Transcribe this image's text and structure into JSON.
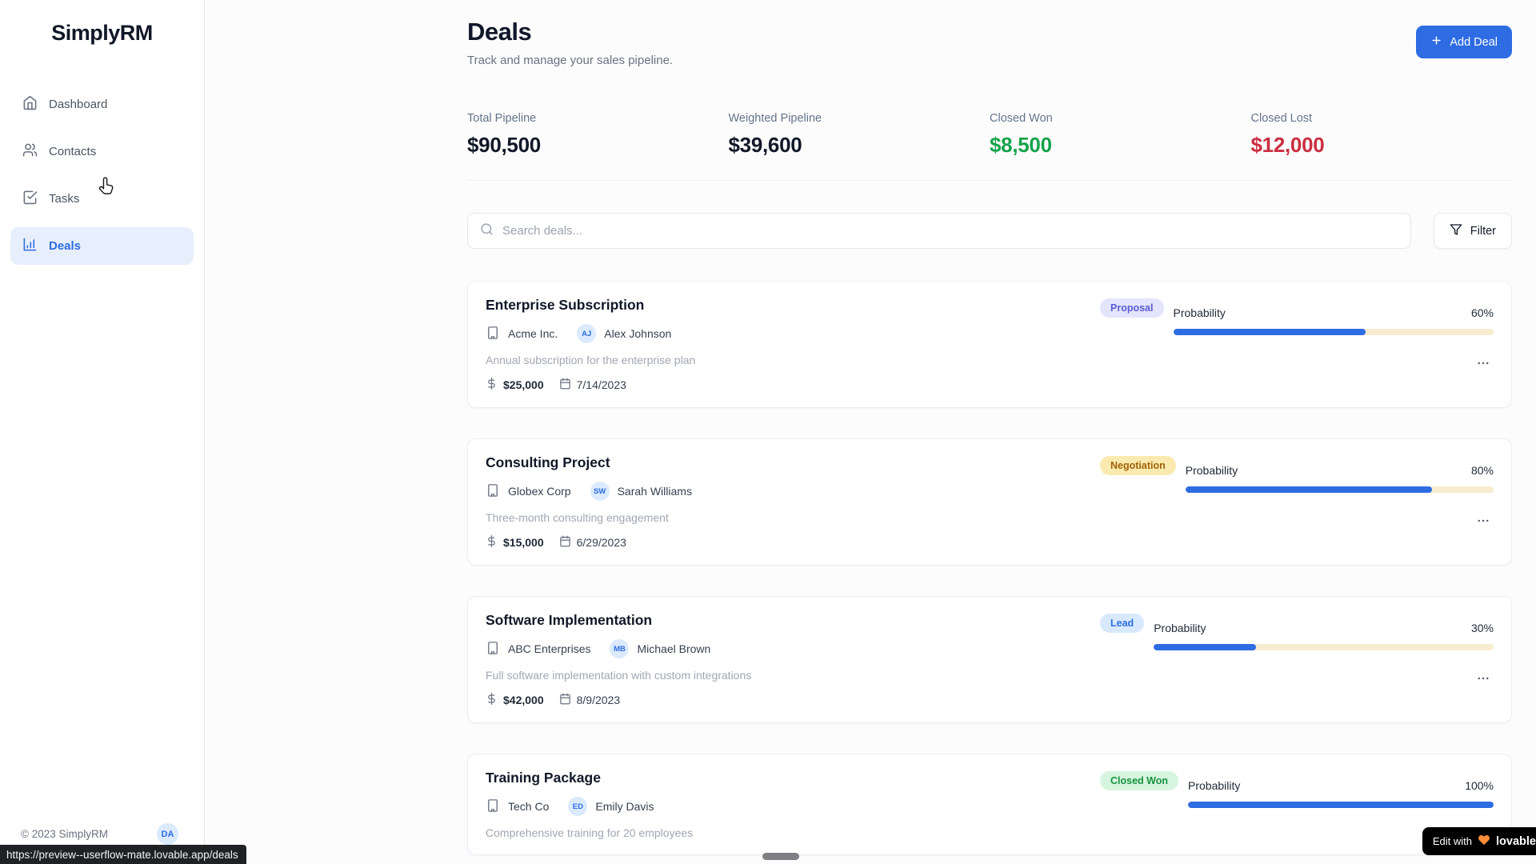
{
  "app": {
    "name": "SimplyRM"
  },
  "sidebar": {
    "items": [
      {
        "label": "Dashboard",
        "icon": "home-icon",
        "active": false
      },
      {
        "label": "Contacts",
        "icon": "users-icon",
        "active": false
      },
      {
        "label": "Tasks",
        "icon": "check-square-icon",
        "active": false
      },
      {
        "label": "Deals",
        "icon": "bar-chart-icon",
        "active": true
      }
    ],
    "footer": {
      "copyright": "© 2023 SimplyRM",
      "avatar_initials": "DA"
    }
  },
  "header": {
    "title": "Deals",
    "subtitle": "Track and manage your sales pipeline.",
    "add_deal_label": "Add Deal"
  },
  "stats": [
    {
      "label": "Total Pipeline",
      "value": "$90,500",
      "color": "#111827"
    },
    {
      "label": "Weighted Pipeline",
      "value": "$39,600",
      "color": "#111827"
    },
    {
      "label": "Closed Won",
      "value": "$8,500",
      "color": "#16a34a"
    },
    {
      "label": "Closed Lost",
      "value": "$12,000",
      "color": "#cb2d3f"
    }
  ],
  "toolbar": {
    "search_placeholder": "Search deals...",
    "filter_label": "Filter"
  },
  "labels": {
    "probability": "Probability"
  },
  "deals": [
    {
      "title": "Enterprise Subscription",
      "stage": "Proposal",
      "stage_bg": "#e4e4fc",
      "stage_fg": "#5b5bd6",
      "company": "Acme Inc.",
      "contact_initials": "AJ",
      "contact": "Alex Johnson",
      "description": "Annual subscription for the enterprise plan",
      "value": "$25,000",
      "date": "7/14/2023",
      "probability_text": "60%",
      "probability_pct": 60
    },
    {
      "title": "Consulting Project",
      "stage": "Negotiation",
      "stage_bg": "#fbeab0",
      "stage_fg": "#a16207",
      "company": "Globex Corp",
      "contact_initials": "SW",
      "contact": "Sarah Williams",
      "description": "Three-month consulting engagement",
      "value": "$15,000",
      "date": "6/29/2023",
      "probability_text": "80%",
      "probability_pct": 80
    },
    {
      "title": "Software Implementation",
      "stage": "Lead",
      "stage_bg": "#d9e9fd",
      "stage_fg": "#2b6fe4",
      "company": "ABC Enterprises",
      "contact_initials": "MB",
      "contact": "Michael Brown",
      "description": "Full software implementation with custom integrations",
      "value": "$42,000",
      "date": "8/9/2023",
      "probability_text": "30%",
      "probability_pct": 30
    },
    {
      "title": "Training Package",
      "stage": "Closed Won",
      "stage_bg": "#d6f5df",
      "stage_fg": "#15923f",
      "company": "Tech Co",
      "contact_initials": "ED",
      "contact": "Emily Davis",
      "description": "Comprehensive training for 20 employees",
      "probability_text": "100%",
      "probability_pct": 100
    }
  ],
  "overlays": {
    "status_url": "https://preview--userflow-mate.lovable.app/deals",
    "edit_badge_prefix": "Edit with",
    "edit_badge_brand": "lovable"
  }
}
